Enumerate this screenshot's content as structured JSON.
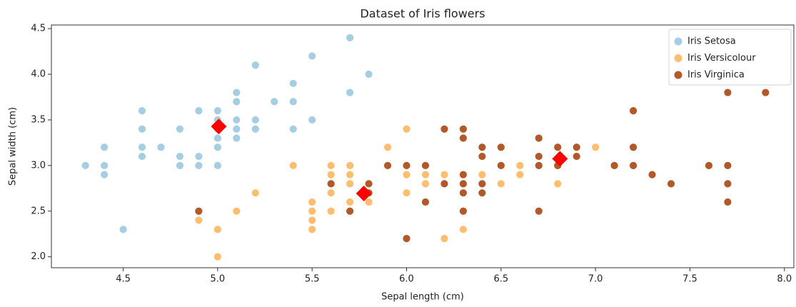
{
  "chart_data": {
    "type": "scatter",
    "title": "Dataset of Iris flowers",
    "x_label": "Sepal length (cm)",
    "y_label": "Sepal width (cm)",
    "xlim": [
      4.12,
      8.05
    ],
    "ylim": [
      1.88,
      4.54
    ],
    "xticks": [
      4.5,
      {
        "value": 5,
        "label": "5.0"
      },
      5.5,
      {
        "value": 6,
        "label": "6.0"
      },
      6.5,
      {
        "value": 7,
        "label": "7.0"
      },
      7.5,
      {
        "value": 8,
        "label": "8.0"
      }
    ],
    "yticks": [
      {
        "value": 2,
        "label": "2.0"
      },
      2.5,
      {
        "value": 3,
        "label": "3.0"
      },
      3.5,
      {
        "value": 4,
        "label": "4.0"
      },
      4.5
    ],
    "legend": "upper right",
    "series": [
      {
        "name": "Iris Setosa",
        "color": "#a6cee3",
        "x": [
          5.1,
          4.9,
          4.7,
          4.6,
          5.0,
          5.4,
          4.6,
          5.0,
          4.4,
          4.9,
          5.4,
          4.8,
          4.8,
          4.3,
          5.8,
          5.7,
          5.4,
          5.1,
          5.7,
          5.1,
          5.4,
          5.1,
          4.6,
          5.1,
          4.8,
          5.0,
          5.0,
          5.2,
          5.2,
          4.7,
          4.8,
          5.4,
          5.2,
          5.5,
          4.9,
          5.0,
          5.5,
          4.9,
          4.4,
          5.1,
          5.0,
          4.5,
          4.4,
          5.0,
          5.1,
          4.8,
          5.1,
          4.6,
          5.3,
          5.0
        ],
        "values": [
          3.5,
          3.0,
          3.2,
          3.1,
          3.6,
          3.9,
          3.4,
          3.4,
          2.9,
          3.1,
          3.7,
          3.4,
          3.0,
          3.0,
          4.0,
          4.4,
          3.9,
          3.5,
          3.8,
          3.8,
          3.4,
          3.7,
          3.6,
          3.3,
          3.4,
          3.0,
          3.4,
          3.5,
          3.4,
          3.2,
          3.1,
          3.4,
          4.1,
          4.2,
          3.1,
          3.2,
          3.5,
          3.6,
          3.0,
          3.4,
          3.5,
          2.3,
          3.2,
          3.5,
          3.8,
          3.0,
          3.8,
          3.2,
          3.7,
          3.3
        ]
      },
      {
        "name": "Iris Versicolour",
        "color": "#fdbf6f",
        "x": [
          7.0,
          6.4,
          6.9,
          5.5,
          6.5,
          5.7,
          6.3,
          4.9,
          6.6,
          5.2,
          5.0,
          5.9,
          6.0,
          6.1,
          5.6,
          6.7,
          5.6,
          5.8,
          6.2,
          5.6,
          5.9,
          6.1,
          6.3,
          6.1,
          6.4,
          6.6,
          6.8,
          6.7,
          6.0,
          5.7,
          5.5,
          5.5,
          5.8,
          6.0,
          5.4,
          6.0,
          6.7,
          6.3,
          5.6,
          5.5,
          5.5,
          6.1,
          5.8,
          5.0,
          5.6,
          5.7,
          5.7,
          6.2,
          5.1,
          5.7
        ],
        "values": [
          3.2,
          3.2,
          3.1,
          2.3,
          2.8,
          2.8,
          3.3,
          2.4,
          2.9,
          2.7,
          2.0,
          3.0,
          2.2,
          2.9,
          2.9,
          3.1,
          3.0,
          2.7,
          2.2,
          2.5,
          3.2,
          2.8,
          2.5,
          2.8,
          2.9,
          3.0,
          2.8,
          3.0,
          2.9,
          2.6,
          2.4,
          2.4,
          2.7,
          2.7,
          3.0,
          3.4,
          3.1,
          2.3,
          3.0,
          2.5,
          2.6,
          3.0,
          2.6,
          2.3,
          2.7,
          3.0,
          2.9,
          2.9,
          2.5,
          2.8
        ]
      },
      {
        "name": "Iris Virginica",
        "color": "#b15928",
        "x": [
          6.3,
          5.8,
          7.1,
          6.3,
          6.5,
          7.6,
          4.9,
          7.3,
          6.7,
          7.2,
          6.5,
          6.4,
          6.8,
          5.7,
          5.8,
          6.4,
          6.5,
          7.7,
          7.7,
          6.0,
          6.9,
          5.6,
          7.7,
          6.3,
          6.7,
          7.2,
          6.2,
          6.1,
          6.4,
          7.2,
          7.4,
          7.9,
          6.4,
          6.3,
          6.1,
          7.7,
          6.3,
          6.4,
          6.0,
          6.9,
          6.7,
          6.9,
          5.8,
          6.8,
          6.7,
          6.7,
          6.3,
          6.5,
          6.2,
          5.9
        ],
        "values": [
          3.3,
          2.7,
          3.0,
          2.9,
          3.0,
          3.0,
          2.5,
          2.9,
          2.5,
          3.6,
          3.2,
          2.7,
          3.0,
          2.5,
          2.8,
          3.2,
          3.0,
          3.8,
          2.6,
          2.2,
          3.2,
          2.8,
          2.8,
          2.7,
          3.3,
          3.2,
          2.8,
          3.0,
          2.8,
          3.0,
          2.8,
          3.8,
          2.8,
          2.8,
          2.6,
          3.0,
          3.4,
          3.1,
          3.0,
          3.1,
          3.1,
          3.1,
          2.7,
          3.2,
          3.3,
          3.0,
          2.5,
          3.0,
          3.4,
          3.0
        ]
      }
    ],
    "centroids": {
      "color": "#ff0000",
      "x": [
        5.006,
        5.774,
        6.812
      ],
      "values": [
        3.428,
        2.694,
        3.074
      ]
    }
  }
}
